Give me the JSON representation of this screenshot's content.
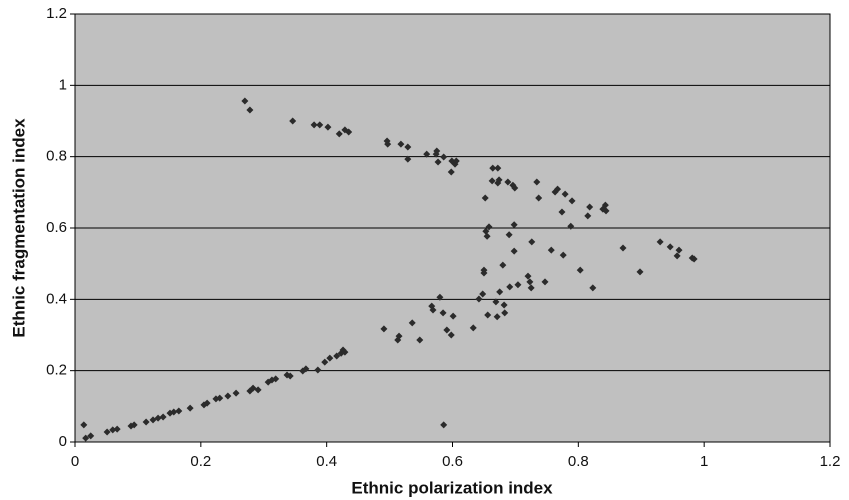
{
  "chart_data": {
    "type": "scatter",
    "x_label": "Ethnic polarization index",
    "y_label": "Ethnic fragmentation index",
    "xlim": [
      0,
      1.2
    ],
    "ylim": [
      0,
      1.2
    ],
    "xticks": [
      0,
      0.2,
      0.4,
      0.6,
      0.8,
      1,
      1.2
    ],
    "yticks": [
      0,
      0.2,
      0.4,
      0.6,
      0.8,
      1,
      1.2
    ],
    "grid": true,
    "color": "#2b2b2b",
    "x": [
      0.014,
      0.017,
      0.025,
      0.051,
      0.06,
      0.067,
      0.089,
      0.094,
      0.113,
      0.124,
      0.132,
      0.14,
      0.151,
      0.157,
      0.165,
      0.183,
      0.205,
      0.21,
      0.224,
      0.23,
      0.243,
      0.256,
      0.278,
      0.283,
      0.291,
      0.307,
      0.313,
      0.319,
      0.337,
      0.342,
      0.362,
      0.367,
      0.386,
      0.397,
      0.405,
      0.416,
      0.423,
      0.426,
      0.429,
      0.491,
      0.513,
      0.515,
      0.536,
      0.548,
      0.567,
      0.569,
      0.58,
      0.585,
      0.586,
      0.591,
      0.598,
      0.601,
      0.633,
      0.642,
      0.648,
      0.65,
      0.65,
      0.653,
      0.655,
      0.656,
      0.669,
      0.671,
      0.675,
      0.682,
      0.683,
      0.68,
      0.691,
      0.69,
      0.698,
      0.698,
      0.704,
      0.72,
      0.723,
      0.725,
      0.726,
      0.747,
      0.757,
      0.776,
      0.803,
      0.823,
      0.871,
      0.898,
      0.93,
      0.946,
      0.957,
      0.96,
      0.981,
      0.984,
      0.27,
      0.278,
      0.346,
      0.38,
      0.389,
      0.402,
      0.42,
      0.429,
      0.435,
      0.496,
      0.497,
      0.518,
      0.529,
      0.529,
      0.559,
      0.574,
      0.575,
      0.577,
      0.586,
      0.598,
      0.599,
      0.604,
      0.606,
      0.664,
      0.672,
      0.663,
      0.672,
      0.674,
      0.652,
      0.688,
      0.696,
      0.699,
      0.734,
      0.737,
      0.763,
      0.767,
      0.774,
      0.779,
      0.79,
      0.788,
      0.815,
      0.818,
      0.839,
      0.843,
      0.844,
      0.658
    ],
    "values": [
      0.048,
      0.011,
      0.017,
      0.028,
      0.034,
      0.036,
      0.045,
      0.048,
      0.056,
      0.062,
      0.067,
      0.07,
      0.081,
      0.084,
      0.087,
      0.095,
      0.104,
      0.109,
      0.121,
      0.123,
      0.129,
      0.137,
      0.143,
      0.151,
      0.146,
      0.168,
      0.174,
      0.177,
      0.188,
      0.185,
      0.199,
      0.205,
      0.202,
      0.224,
      0.235,
      0.241,
      0.249,
      0.258,
      0.252,
      0.317,
      0.286,
      0.297,
      0.334,
      0.286,
      0.381,
      0.37,
      0.406,
      0.362,
      0.048,
      0.314,
      0.3,
      0.353,
      0.32,
      0.401,
      0.415,
      0.482,
      0.474,
      0.591,
      0.577,
      0.356,
      0.393,
      0.351,
      0.421,
      0.384,
      0.362,
      0.496,
      0.435,
      0.581,
      0.609,
      0.535,
      0.441,
      0.465,
      0.449,
      0.432,
      0.561,
      0.449,
      0.538,
      0.524,
      0.482,
      0.432,
      0.544,
      0.477,
      0.561,
      0.547,
      0.522,
      0.538,
      0.516,
      0.513,
      0.956,
      0.931,
      0.9,
      0.889,
      0.889,
      0.883,
      0.864,
      0.875,
      0.869,
      0.844,
      0.835,
      0.835,
      0.827,
      0.793,
      0.807,
      0.807,
      0.816,
      0.785,
      0.799,
      0.757,
      0.788,
      0.779,
      0.788,
      0.768,
      0.768,
      0.732,
      0.726,
      0.735,
      0.684,
      0.729,
      0.72,
      0.712,
      0.729,
      0.684,
      0.701,
      0.709,
      0.645,
      0.695,
      0.676,
      0.605,
      0.634,
      0.659,
      0.653,
      0.664,
      0.648,
      0.603
    ]
  }
}
